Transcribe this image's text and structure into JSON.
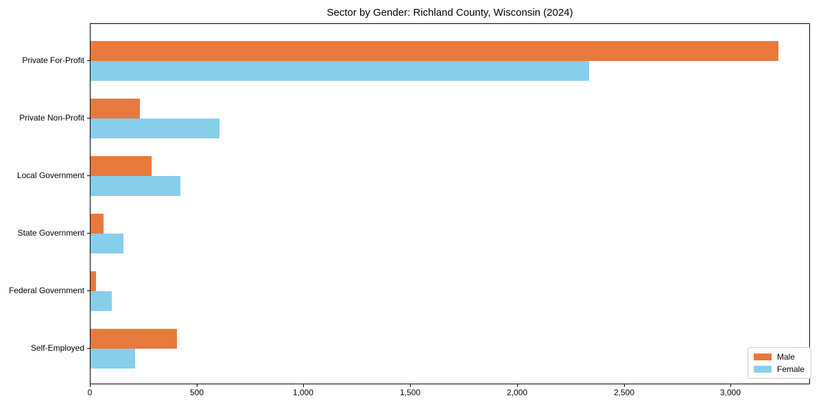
{
  "figure": {
    "background": "#ffffff"
  },
  "chart_data": {
    "type": "bar",
    "orientation": "horizontal",
    "title": "Sector by Gender: Richland County, Wisconsin (2024)",
    "xlabel": "",
    "ylabel": "",
    "grid": false,
    "categories": [
      "Private For-Profit",
      "Private Non-Profit",
      "Local Government",
      "State Government",
      "Federal Government",
      "Self-Employed"
    ],
    "series": [
      {
        "name": "Male",
        "color": "#e8793c",
        "values": [
          3220,
          230,
          285,
          60,
          25,
          405
        ]
      },
      {
        "name": "Female",
        "color": "#87ceeb",
        "values": [
          2335,
          605,
          420,
          155,
          100,
          210
        ]
      }
    ],
    "xlim": [
      0,
      3365
    ],
    "x_ticks": {
      "values": [
        0,
        500,
        1000,
        1500,
        2000,
        2500,
        3000
      ],
      "labels": [
        "0",
        "500",
        "1,000",
        "1,500",
        "2,000",
        "2,500",
        "3,000"
      ]
    },
    "legend": {
      "position": "lower right",
      "entries": [
        "Male",
        "Female"
      ]
    }
  },
  "style": {
    "axis_color": "#000000",
    "text_color": "#000000",
    "legend_border_color": "#cccccc"
  }
}
